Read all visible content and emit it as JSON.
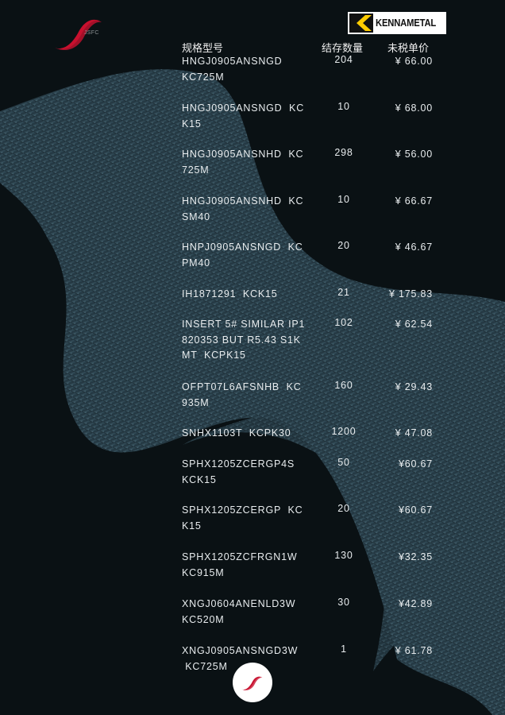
{
  "brand": {
    "left_logo_text": "JSFC",
    "right_logo_text": "KENNAMETAL",
    "accent": "#c8102e",
    "kennametal_yellow": "#ffcc00"
  },
  "table": {
    "headers": {
      "model": "规格型号",
      "stock": "结存数量",
      "price": "未税单价"
    },
    "rows": [
      {
        "model": "HNGJ0905ANSNGD\nKC725M",
        "stock": "204",
        "price": "¥ 66.00"
      },
      {
        "model": "HNGJ0905ANSNGD  KC\nK15",
        "stock": "10",
        "price": "¥ 68.00"
      },
      {
        "model": "HNGJ0905ANSNHD  KC\n725M",
        "stock": "298",
        "price": "¥ 56.00"
      },
      {
        "model": "HNGJ0905ANSNHD  KC\nSM40",
        "stock": "10",
        "price": "¥ 66.67"
      },
      {
        "model": "HNPJ0905ANSNGD  KC\nPM40",
        "stock": "20",
        "price": "¥ 46.67"
      },
      {
        "model": "IH1871291  KCK15",
        "stock": "21",
        "price": "¥ 175.83"
      },
      {
        "model": "INSERT 5# SIMILAR IP1\n820353 BUT R5.43 S1K\nMT  KCPK15",
        "stock": "102",
        "price": "¥ 62.54"
      },
      {
        "model": "OFPT07L6AFSNHB  KC\n935M",
        "stock": "160",
        "price": "¥ 29.43"
      },
      {
        "model": "SNHX1103T  KCPK30",
        "stock": "1200",
        "price": "¥ 47.08"
      },
      {
        "model": "SPHX1205ZCERGP4S\nKCK15",
        "stock": "50",
        "price": "¥60.67"
      },
      {
        "model": "SPHX1205ZCERGP  KC\nK15",
        "stock": "20",
        "price": "¥60.67"
      },
      {
        "model": "SPHX1205ZCFRGN1W\nKC915M",
        "stock": "130",
        "price": "¥32.35"
      },
      {
        "model": "XNGJ0604ANENLD3W\nKC520M",
        "stock": "30",
        "price": "¥42.89"
      },
      {
        "model": "XNGJ0905ANSNGD3W\n KC725M",
        "stock": "1",
        "price": "¥ 61.78"
      }
    ]
  }
}
